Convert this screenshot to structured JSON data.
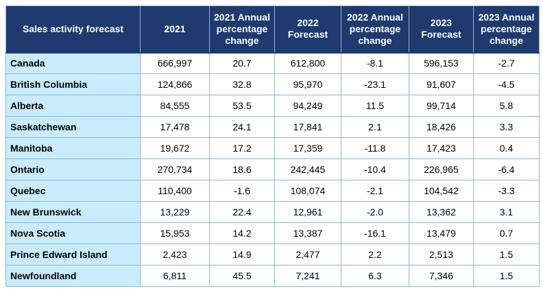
{
  "table": {
    "headers": [
      "Sales activity forecast",
      "2021",
      "2021 Annual percentage change",
      "2022 Forecast",
      "2022 Annual percentage change",
      "2023 Forecast",
      "2023 Annual percentage change"
    ],
    "rows": [
      {
        "region": "Canada",
        "v2021": "666,997",
        "pct2021": "20.7",
        "f2022": "612,800",
        "pct2022": "-8.1",
        "f2023": "596,153",
        "pct2023": "-2.7"
      },
      {
        "region": "British Columbia",
        "v2021": "124,866",
        "pct2021": "32.8",
        "f2022": "95,970",
        "pct2022": "-23.1",
        "f2023": "91,607",
        "pct2023": "-4.5"
      },
      {
        "region": "Alberta",
        "v2021": "84,555",
        "pct2021": "53.5",
        "f2022": "94,249",
        "pct2022": "11.5",
        "f2023": "99,714",
        "pct2023": "5.8"
      },
      {
        "region": "Saskatchewan",
        "v2021": "17,478",
        "pct2021": "24.1",
        "f2022": "17,841",
        "pct2022": "2.1",
        "f2023": "18,426",
        "pct2023": "3.3"
      },
      {
        "region": "Manitoba",
        "v2021": "19,672",
        "pct2021": "17.2",
        "f2022": "17,359",
        "pct2022": "-11.8",
        "f2023": "17,423",
        "pct2023": "0.4"
      },
      {
        "region": "Ontario",
        "v2021": "270,734",
        "pct2021": "18.6",
        "f2022": "242,445",
        "pct2022": "-10.4",
        "f2023": "226,965",
        "pct2023": "-6.4"
      },
      {
        "region": "Quebec",
        "v2021": "110,400",
        "pct2021": "-1.6",
        "f2022": "108,074",
        "pct2022": "-2.1",
        "f2023": "104,542",
        "pct2023": "-3.3"
      },
      {
        "region": "New Brunswick",
        "v2021": "13,229",
        "pct2021": "22.4",
        "f2022": "12,961",
        "pct2022": "-2.0",
        "f2023": "13,362",
        "pct2023": "3.1"
      },
      {
        "region": "Nova Scotia",
        "v2021": "15,953",
        "pct2021": "14.2",
        "f2022": "13,387",
        "pct2022": "-16.1",
        "f2023": "13,479",
        "pct2023": "0.7"
      },
      {
        "region": "Prince Edward Island",
        "v2021": "2,423",
        "pct2021": "14.9",
        "f2022": "2,477",
        "pct2022": "2.2",
        "f2023": "2,513",
        "pct2023": "1.5"
      },
      {
        "region": "Newfoundland",
        "v2021": "6,811",
        "pct2021": "45.5",
        "f2022": "7,241",
        "pct2022": "6.3",
        "f2023": "7,346",
        "pct2023": "1.5"
      }
    ]
  }
}
